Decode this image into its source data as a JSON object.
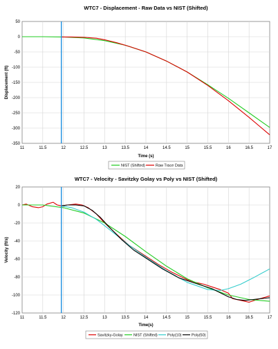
{
  "chart_data": [
    {
      "type": "line",
      "title": "WTC7 - Displacement - Raw Data vs NIST (Shifted)",
      "xlabel": "Time (s)",
      "ylabel": "Displacement (ft)",
      "xlim": [
        11,
        17
      ],
      "ylim": [
        -350,
        50
      ],
      "x_ticks": [
        "11",
        "11.5",
        "12",
        "12.5",
        "13",
        "13.5",
        "14",
        "14.5",
        "15",
        "15.5",
        "16",
        "16.5",
        "17"
      ],
      "y_ticks": [
        "50",
        "0",
        "-50",
        "-100",
        "-150",
        "-200",
        "-250",
        "-300",
        "-350"
      ],
      "grid": true,
      "legend": "bottom",
      "vertical_marker": {
        "x": 11.95,
        "color": "#1e90e0"
      },
      "series": [
        {
          "name": "NIST (Shifted)",
          "color": "#22cc22",
          "x": [
            11,
            11.5,
            12,
            12.5,
            13,
            13.5,
            14,
            14.5,
            15,
            15.5,
            16,
            16.5,
            17
          ],
          "y": [
            0,
            0,
            -1,
            -4,
            -13,
            -28,
            -50,
            -80,
            -116,
            -158,
            -202,
            -250,
            -298
          ]
        },
        {
          "name": "Raw Trace Data",
          "color": "#dd0000",
          "x": [
            11.95,
            12.2,
            12.5,
            12.8,
            13,
            13.3,
            13.6,
            14,
            14.5,
            15,
            15.5,
            16,
            16.5,
            17
          ],
          "y": [
            -1,
            -1,
            -2,
            -5,
            -10,
            -20,
            -32,
            -50,
            -80,
            -116,
            -160,
            -210,
            -265,
            -322
          ]
        }
      ]
    },
    {
      "type": "line",
      "title": "WTC7 - Velocity - Savitzky Golay vs Poly vs NIST (Shifted)",
      "xlabel": "Time(s)",
      "ylabel": "Velocity (ft/s)",
      "xlim": [
        11,
        17
      ],
      "ylim": [
        -120,
        20
      ],
      "x_ticks": [
        "11",
        "11.5",
        "12",
        "12.5",
        "13",
        "13.5",
        "14",
        "14.5",
        "15",
        "15.5",
        "16",
        "16.5",
        "17"
      ],
      "y_ticks": [
        "20",
        "0",
        "-20",
        "-40",
        "-60",
        "-80",
        "-100",
        "-120"
      ],
      "grid": true,
      "legend": "bottom",
      "vertical_marker": {
        "x": 11.95,
        "color": "#1e90e0"
      },
      "series": [
        {
          "name": "Savitzky-Golay",
          "color": "#dd0000",
          "x": [
            11,
            11.1,
            11.25,
            11.4,
            11.5,
            11.6,
            11.75,
            11.85,
            11.95,
            12.1,
            12.3,
            12.45,
            12.6,
            12.8,
            13,
            13.3,
            13.6,
            14,
            14.3,
            14.6,
            15,
            15.2,
            15.4,
            15.6,
            15.8,
            16,
            16.1,
            16.3,
            16.5,
            16.7,
            17
          ],
          "y": [
            0,
            1,
            -2,
            -3,
            -2,
            1,
            3,
            0,
            -1,
            0,
            1,
            0,
            -3,
            -10,
            -20,
            -33,
            -45,
            -57,
            -66,
            -74,
            -83,
            -86,
            -88,
            -91,
            -94,
            -98,
            -104,
            -106,
            -108,
            -105,
            -101
          ]
        },
        {
          "name": "NIST (Shifted)",
          "color": "#22cc22",
          "x": [
            11,
            11.5,
            12,
            12.5,
            13,
            13.5,
            14,
            14.5,
            15,
            15.5,
            16,
            16.5,
            17
          ],
          "y": [
            0,
            0,
            -3,
            -9,
            -20,
            -35,
            -52,
            -68,
            -82,
            -92,
            -100,
            -105,
            -107
          ]
        },
        {
          "name": "Poly(10)",
          "color": "#33cccc",
          "x": [
            11.95,
            12.2,
            12.5,
            12.8,
            13,
            13.3,
            13.6,
            14,
            14.5,
            15,
            15.5,
            15.8,
            16,
            16.3,
            16.6,
            17
          ],
          "y": [
            -1,
            -3,
            -8,
            -16,
            -23,
            -34,
            -45,
            -58,
            -73,
            -86,
            -94,
            -95,
            -93,
            -88,
            -81,
            -71
          ]
        },
        {
          "name": "Poly(50)",
          "color": "#000000",
          "x": [
            11.95,
            12.1,
            12.3,
            12.5,
            12.7,
            12.9,
            13.1,
            13.4,
            13.7,
            14,
            14.4,
            14.8,
            15.2,
            15.6,
            16,
            16.2,
            16.4,
            16.6,
            16.8,
            17
          ],
          "y": [
            -1,
            0,
            0,
            -1,
            -6,
            -14,
            -24,
            -38,
            -50,
            -59,
            -71,
            -81,
            -87,
            -93,
            -102,
            -105,
            -106,
            -105,
            -104,
            -103
          ]
        }
      ]
    }
  ]
}
